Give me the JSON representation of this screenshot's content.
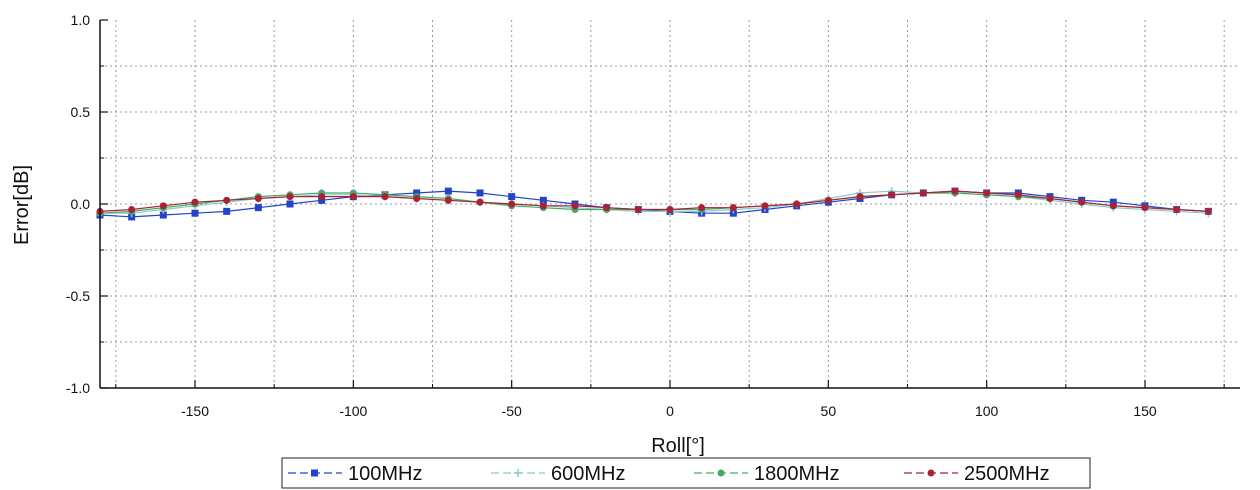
{
  "chart_data": {
    "type": "line",
    "xlabel": "Roll[°]",
    "ylabel": "Error[dB]",
    "xlim": [
      -180,
      180
    ],
    "ylim": [
      -1.0,
      1.0
    ],
    "xticks": [
      -150,
      -100,
      -50,
      0,
      50,
      100,
      150
    ],
    "yticks": [
      -1.0,
      -0.5,
      0.0,
      0.5,
      1.0
    ],
    "xtick_labels": [
      "-150",
      "-100",
      "-50",
      "0",
      "50",
      "100",
      "150"
    ],
    "ytick_labels": [
      "-1.0",
      "-0.5",
      "0.0",
      "0.5",
      "1.0"
    ],
    "grid": true,
    "legend_position": "bottom",
    "x": [
      -180,
      -170,
      -160,
      -150,
      -140,
      -130,
      -120,
      -110,
      -100,
      -90,
      -80,
      -70,
      -60,
      -50,
      -40,
      -30,
      -20,
      -10,
      0,
      10,
      20,
      30,
      40,
      50,
      60,
      70,
      80,
      90,
      100,
      110,
      120,
      130,
      140,
      150,
      160,
      170
    ],
    "series": [
      {
        "name": "100MHz",
        "color": "#2244cc",
        "marker": "square",
        "values": [
          -0.06,
          -0.07,
          -0.06,
          -0.05,
          -0.04,
          -0.02,
          0.0,
          0.02,
          0.04,
          0.05,
          0.06,
          0.07,
          0.06,
          0.04,
          0.02,
          0.0,
          -0.02,
          -0.03,
          -0.04,
          -0.05,
          -0.05,
          -0.03,
          -0.01,
          0.01,
          0.03,
          0.05,
          0.06,
          0.07,
          0.06,
          0.06,
          0.04,
          0.02,
          0.01,
          -0.01,
          -0.03,
          -0.04
        ]
      },
      {
        "name": "600MHz",
        "color": "#88cccc",
        "marker": "plus",
        "values": [
          -0.05,
          -0.05,
          -0.03,
          -0.01,
          0.01,
          0.03,
          0.04,
          0.05,
          0.05,
          0.04,
          0.03,
          0.02,
          0.01,
          0.0,
          -0.01,
          -0.02,
          -0.03,
          -0.04,
          -0.04,
          -0.04,
          -0.03,
          -0.02,
          0.0,
          0.03,
          0.06,
          0.07,
          0.06,
          0.06,
          0.05,
          0.04,
          0.02,
          0.0,
          -0.02,
          -0.03,
          -0.04,
          -0.05
        ]
      },
      {
        "name": "1800MHz",
        "color": "#44aa66",
        "marker": "circle",
        "values": [
          -0.05,
          -0.04,
          -0.02,
          0.0,
          0.02,
          0.04,
          0.05,
          0.06,
          0.06,
          0.05,
          0.04,
          0.03,
          0.01,
          -0.01,
          -0.02,
          -0.03,
          -0.03,
          -0.03,
          -0.03,
          -0.03,
          -0.02,
          -0.01,
          0.0,
          0.02,
          0.04,
          0.05,
          0.06,
          0.06,
          0.05,
          0.04,
          0.03,
          0.01,
          -0.01,
          -0.02,
          -0.03,
          -0.04
        ]
      },
      {
        "name": "2500MHz",
        "color": "#aa2233",
        "marker": "circle",
        "values": [
          -0.04,
          -0.03,
          -0.01,
          0.01,
          0.02,
          0.03,
          0.04,
          0.04,
          0.04,
          0.04,
          0.03,
          0.02,
          0.01,
          0.0,
          -0.01,
          -0.01,
          -0.02,
          -0.03,
          -0.03,
          -0.02,
          -0.02,
          -0.01,
          0.0,
          0.02,
          0.04,
          0.05,
          0.06,
          0.07,
          0.06,
          0.05,
          0.03,
          0.01,
          -0.01,
          -0.02,
          -0.03,
          -0.04
        ]
      }
    ]
  }
}
